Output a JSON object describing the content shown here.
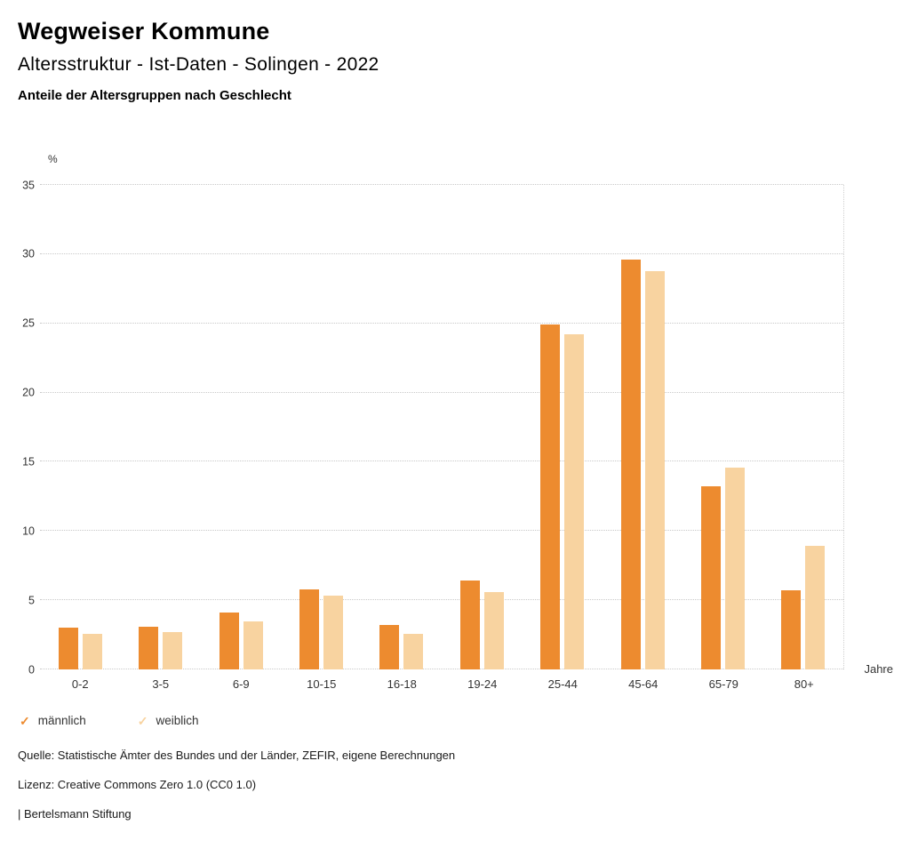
{
  "header": {
    "title": "Wegweiser Kommune",
    "subtitle": "Altersstruktur - Ist-Daten - Solingen - 2022",
    "chart_heading": "Anteile der Altersgruppen nach Geschlecht"
  },
  "chart_data": {
    "type": "bar",
    "categories": [
      "0-2",
      "3-5",
      "6-9",
      "10-15",
      "16-18",
      "19-24",
      "25-44",
      "45-64",
      "65-79",
      "80+"
    ],
    "series": [
      {
        "name": "männlich",
        "color": "#ED8B2F",
        "values": [
          3.0,
          3.1,
          4.1,
          5.8,
          3.2,
          6.4,
          24.9,
          29.6,
          13.2,
          5.7
        ]
      },
      {
        "name": "weiblich",
        "color": "#F8D3A0",
        "values": [
          2.6,
          2.7,
          3.5,
          5.3,
          2.6,
          5.6,
          24.2,
          28.8,
          14.6,
          8.9
        ]
      }
    ],
    "ylabel": "%",
    "xlabel": "Jahre",
    "ylim": [
      0,
      35
    ],
    "yticks": [
      0,
      5,
      10,
      15,
      20,
      25,
      30,
      35
    ],
    "grid": true,
    "legend_position": "bottom",
    "legend_marker": "✓"
  },
  "footer": {
    "source": "Quelle: Statistische Ämter des Bundes und der Länder, ZEFIR, eigene Berechnungen",
    "license": "Lizenz: Creative Commons Zero 1.0 (CC0 1.0)",
    "attribution": "| Bertelsmann Stiftung"
  }
}
